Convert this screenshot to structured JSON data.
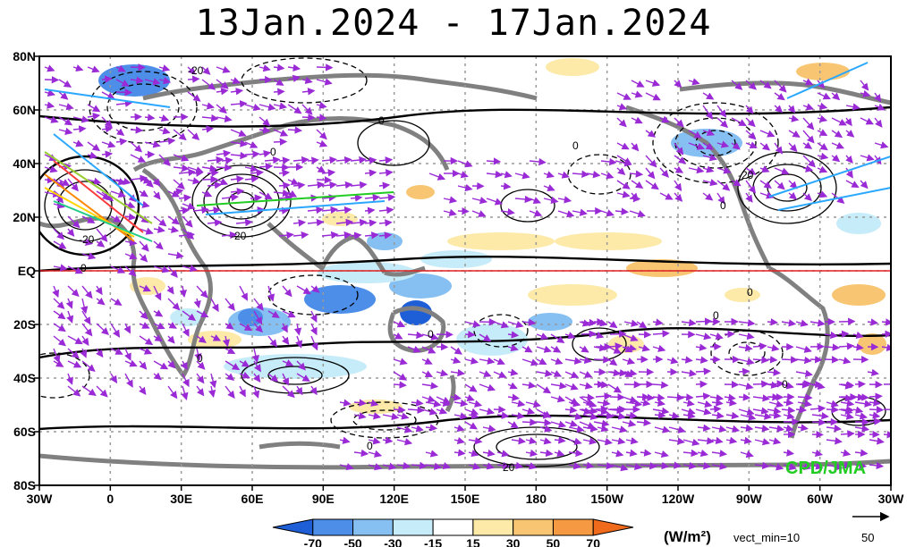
{
  "title": "13Jan.2024 - 17Jan.2024",
  "axes": {
    "lat_labels": [
      "80N",
      "60N",
      "40N",
      "20N",
      "EQ",
      "20S",
      "40S",
      "60S",
      "80S"
    ],
    "lat_values": [
      80,
      60,
      40,
      20,
      0,
      -20,
      -40,
      -60,
      -80
    ],
    "lon_labels": [
      "30W",
      "0",
      "30E",
      "60E",
      "90E",
      "120E",
      "150E",
      "180",
      "150W",
      "120W",
      "90W",
      "60W",
      "30W"
    ],
    "lon_values": [
      -30,
      0,
      30,
      60,
      90,
      120,
      150,
      180,
      210,
      240,
      270,
      300,
      330
    ]
  },
  "colorbar": {
    "tick_labels": [
      "-70",
      "-50",
      "-30",
      "-15",
      "15",
      "30",
      "50",
      "70"
    ],
    "colors": [
      "#1e5fd8",
      "#4c8ee8",
      "#86bff2",
      "#c6ecf9",
      "#ffffff",
      "#fde9a8",
      "#f8c673",
      "#f59a42",
      "#ef6a1b"
    ],
    "unit": "(W/m²)",
    "vector_note": "vect_min=10"
  },
  "reference_vector": {
    "label": "50"
  },
  "credit": "CPD/JMA",
  "legend_colors": {
    "equator": "#e02020",
    "land": "#808080",
    "vectors": "#9a2ad6",
    "credit": "#22cc22"
  }
}
